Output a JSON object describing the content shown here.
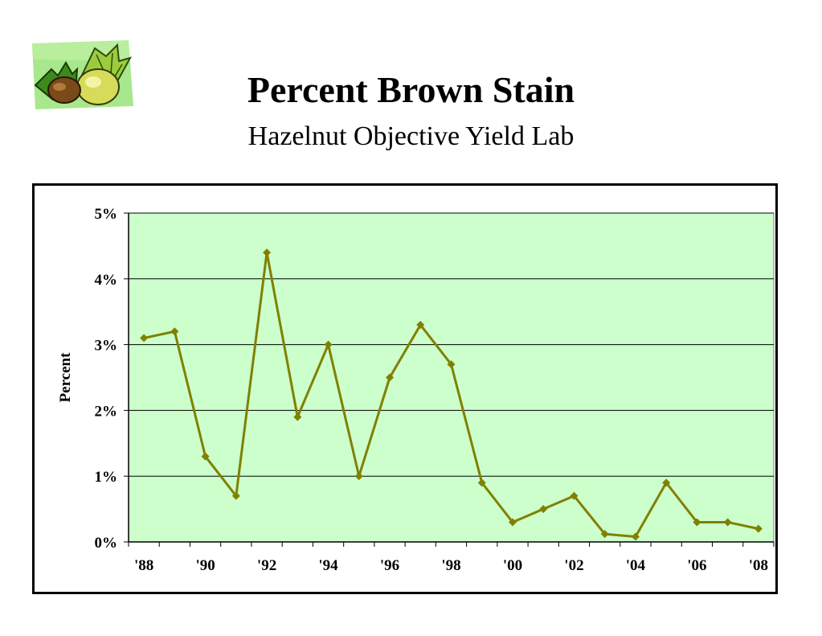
{
  "header": {
    "title": "Percent Brown Stain",
    "subtitle": "Hazelnut Objective Yield Lab"
  },
  "logo": {
    "icon": "hazelnut-clipart-icon",
    "background": "#a8e88c"
  },
  "colors": {
    "plot_bg": "#ccffcc",
    "line": "#808000",
    "grid": "#000000"
  },
  "chart_data": {
    "type": "line",
    "title": "",
    "xlabel": "",
    "ylabel": "Percent",
    "x": [
      1988,
      1989,
      1990,
      1991,
      1992,
      1993,
      1994,
      1995,
      1996,
      1997,
      1998,
      1999,
      2000,
      2001,
      2002,
      2003,
      2004,
      2005,
      2006,
      2007,
      2008
    ],
    "series": [
      {
        "values": [
          3.1,
          3.2,
          1.3,
          0.7,
          4.4,
          1.9,
          3.0,
          1.0,
          2.5,
          3.3,
          2.7,
          0.9,
          0.3,
          0.5,
          0.7,
          0.12,
          0.08,
          0.9,
          0.3,
          0.3,
          0.2
        ]
      }
    ],
    "ylim": [
      0,
      5
    ],
    "y_ticks": [
      0,
      1,
      2,
      3,
      4,
      5
    ],
    "y_tick_labels": [
      "0%",
      "1%",
      "2%",
      "3%",
      "4%",
      "5%"
    ],
    "x_tick_labels": [
      "'88",
      "'90",
      "'92",
      "'94",
      "'96",
      "'98",
      "'00",
      "'02",
      "'04",
      "'06",
      "'08"
    ],
    "grid": true,
    "legend": "none",
    "marker": "diamond"
  }
}
